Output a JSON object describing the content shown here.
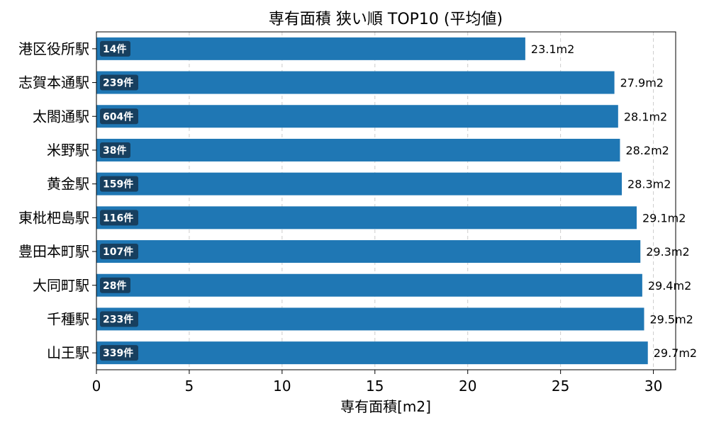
{
  "chart_data": {
    "type": "bar",
    "orientation": "horizontal",
    "title": "専有面積 狭い順 TOP10 (平均値)",
    "xlabel": "専有面積[m2]",
    "ylabel": "",
    "xlim": [
      0,
      31.2
    ],
    "xticks": [
      0,
      5,
      10,
      15,
      20,
      25,
      30
    ],
    "grid": "x-dashed",
    "bar_color": "#1f77b4",
    "count_badge_color": "#173f5f",
    "value_suffix": "m2",
    "categories": [
      "港区役所駅",
      "志賀本通駅",
      "太閤通駅",
      "米野駅",
      "黄金駅",
      "東枇杷島駅",
      "豊田本町駅",
      "大同町駅",
      "千種駅",
      "山王駅"
    ],
    "values": [
      23.1,
      27.9,
      28.1,
      28.2,
      28.3,
      29.1,
      29.3,
      29.4,
      29.5,
      29.7
    ],
    "value_labels": [
      "23.1m2",
      "27.9m2",
      "28.1m2",
      "28.2m2",
      "28.3m2",
      "29.1m2",
      "29.3m2",
      "29.4m2",
      "29.5m2",
      "29.7m2"
    ],
    "counts": [
      "14件",
      "239件",
      "604件",
      "38件",
      "159件",
      "116件",
      "107件",
      "28件",
      "233件",
      "339件"
    ]
  }
}
